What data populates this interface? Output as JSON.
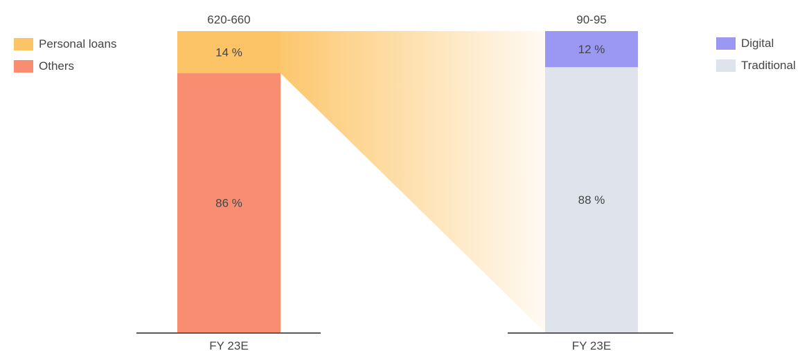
{
  "chart_data": {
    "type": "bar",
    "stacked": true,
    "charts": [
      {
        "category": "FY 23E",
        "total_label": "620-660",
        "segments": [
          {
            "name": "Personal loans",
            "value": 14,
            "label": "14 %",
            "color": "#fcc466"
          },
          {
            "name": "Others",
            "value": 86,
            "label": "86 %",
            "color": "#f98d72"
          }
        ]
      },
      {
        "category": "FY 23E",
        "total_label": "90-95",
        "segments": [
          {
            "name": "Digital",
            "value": 12,
            "label": "12 %",
            "color": "#9b98f3"
          },
          {
            "name": "Traditional",
            "value": 88,
            "label": "88 %",
            "color": "#dfe3ec"
          }
        ]
      }
    ],
    "connector": {
      "from_segment": "Personal loans",
      "to_chart": 1,
      "color": "#fcc466"
    },
    "legends": [
      {
        "items": [
          {
            "name": "Personal loans",
            "color": "#fcc466"
          },
          {
            "name": "Others",
            "color": "#f98d72"
          }
        ]
      },
      {
        "items": [
          {
            "name": "Digital",
            "color": "#9b98f3"
          },
          {
            "name": "Traditional",
            "color": "#dfe3ec"
          }
        ]
      }
    ]
  }
}
